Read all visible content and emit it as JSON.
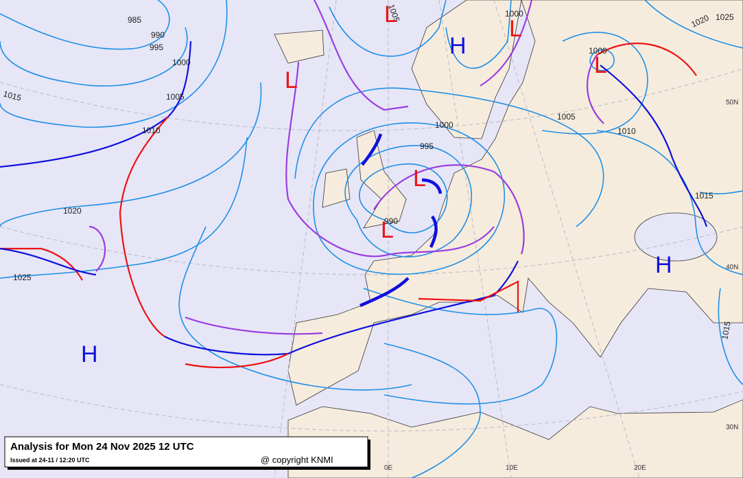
{
  "title": "Analysis for Mon 24 Nov 2025 12 UTC",
  "issued": "Issued at 24-11 / 12:20 UTC",
  "copyright": "@ copyright KNMI",
  "isobar_labels": [
    985,
    990,
    995,
    1000,
    1005,
    1010,
    1015,
    1020,
    1025,
    1005,
    1000,
    1000,
    1020,
    1025,
    1000,
    995,
    1005,
    1010,
    990,
    1015,
    1015
  ],
  "pressure_centers": [
    "L",
    "L",
    "L",
    "L",
    "L",
    "L",
    "H",
    "H",
    "H"
  ],
  "graticule_labels": [
    "50N",
    "40N",
    "30N",
    "0E",
    "10E",
    "20E"
  ]
}
